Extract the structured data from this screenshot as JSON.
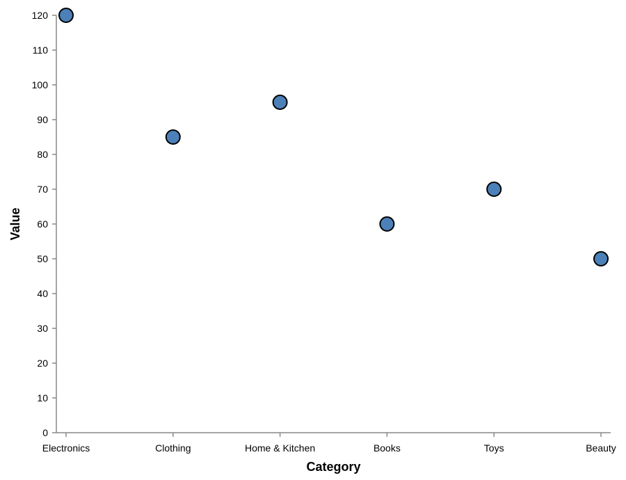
{
  "chart_data": {
    "type": "scatter",
    "categories": [
      "Electronics",
      "Clothing",
      "Home & Kitchen",
      "Books",
      "Toys",
      "Beauty"
    ],
    "values": [
      120,
      85,
      95,
      60,
      70,
      50
    ],
    "xlabel": "Category",
    "ylabel": "Value",
    "ylim": [
      0,
      120
    ],
    "yticks": [
      0,
      10,
      20,
      30,
      40,
      50,
      60,
      70,
      80,
      90,
      100,
      110,
      120
    ],
    "grid": false,
    "point_color": "#4c80b8",
    "point_stroke": "#000000"
  }
}
